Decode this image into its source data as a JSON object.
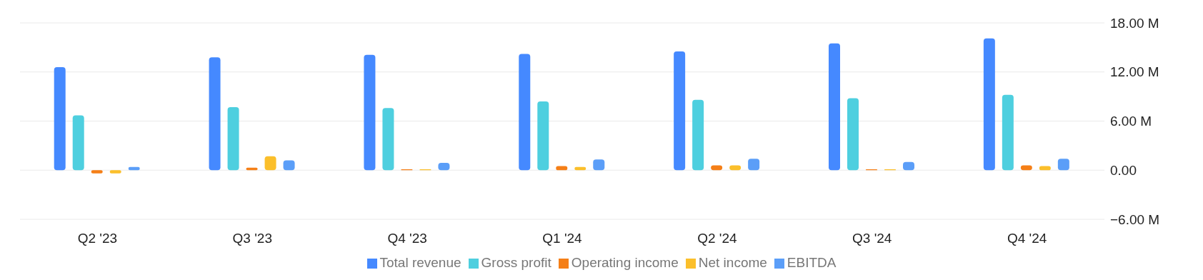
{
  "chart_data": {
    "type": "bar",
    "categories": [
      "Q2 '23",
      "Q3 '23",
      "Q4 '23",
      "Q1 '24",
      "Q2 '24",
      "Q3 '24",
      "Q4 '24"
    ],
    "series": [
      {
        "name": "Total revenue",
        "color": "#4589ff",
        "values": [
          12.6,
          13.8,
          14.1,
          14.2,
          14.5,
          15.5,
          16.1
        ]
      },
      {
        "name": "Gross profit",
        "color": "#4ecfdf",
        "values": [
          6.7,
          7.7,
          7.6,
          8.4,
          8.6,
          8.8,
          9.2
        ]
      },
      {
        "name": "Operating income",
        "color": "#f57f17",
        "values": [
          -0.4,
          0.3,
          0.1,
          0.5,
          0.6,
          0.1,
          0.6
        ]
      },
      {
        "name": "Net income",
        "color": "#fbbf2b",
        "values": [
          -0.4,
          1.7,
          0.1,
          0.4,
          0.6,
          0.1,
          0.5
        ]
      },
      {
        "name": "EBITDA",
        "color": "#5b9ef8",
        "values": [
          0.4,
          1.2,
          0.9,
          1.3,
          1.4,
          1.0,
          1.4
        ]
      }
    ],
    "ylim": [
      -6,
      18
    ],
    "yticks": [
      {
        "value": -6,
        "label": "−6.00 M"
      },
      {
        "value": 0,
        "label": "0.00"
      },
      {
        "value": 6,
        "label": "6.00 M"
      },
      {
        "value": 12,
        "label": "12.00 M"
      },
      {
        "value": 18,
        "label": "18.00 M"
      }
    ],
    "grid": "y",
    "legend": "bottom"
  }
}
